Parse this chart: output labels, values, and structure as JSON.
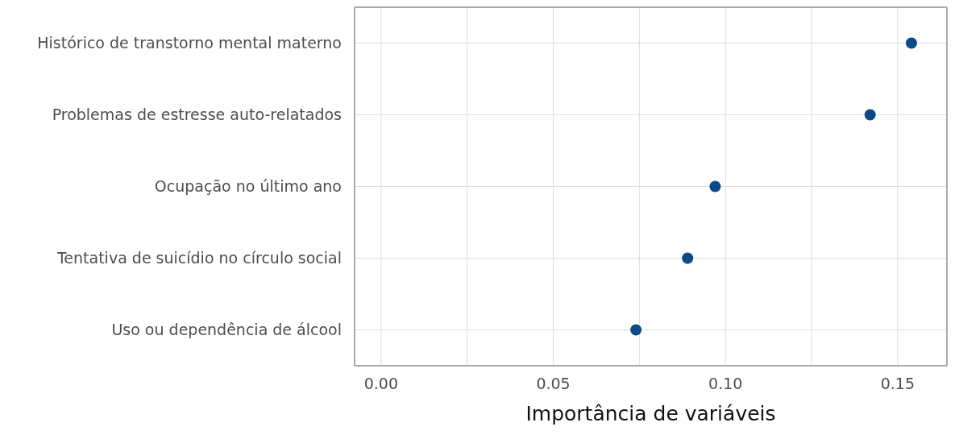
{
  "chart_data": {
    "type": "scatter",
    "orientation": "horizontal",
    "xlabel": "Importância de variáveis",
    "categories": [
      "Histórico de transtorno mental materno",
      "Problemas de estresse auto-relatados",
      "Ocupação no último ano",
      "Tentativa de suicídio no círculo social",
      "Uso ou dependência de álcool"
    ],
    "values": [
      0.154,
      0.142,
      0.097,
      0.089,
      0.074
    ],
    "color": "#0b4a87",
    "xlim": [
      -0.0077,
      0.1643
    ],
    "xticks": [
      {
        "value": 0,
        "label": "0.00"
      },
      {
        "value": 0.025,
        "label": null
      },
      {
        "value": 0.05,
        "label": "0.05"
      },
      {
        "value": 0.075,
        "label": null
      },
      {
        "value": 0.1,
        "label": "0.10"
      },
      {
        "value": 0.125,
        "label": null
      },
      {
        "value": 0.15,
        "label": "0.15"
      }
    ],
    "grid": true,
    "marker": "circle"
  }
}
